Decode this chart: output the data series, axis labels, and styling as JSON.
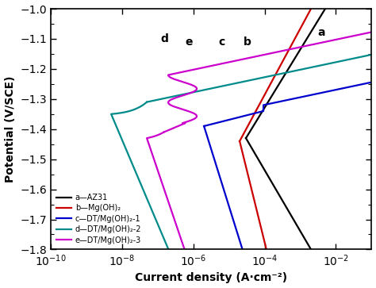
{
  "xlabel": "Current density (A·cm⁻²)",
  "ylabel": "Potential (V/SCE)",
  "ylim": [
    -1.8,
    -1.0
  ],
  "curves": {
    "a": {
      "label": "AZ31",
      "color": "#000000",
      "lw": 1.6
    },
    "b": {
      "label": "Mg(OH)₂",
      "color": "#cc0000",
      "lw": 1.6
    },
    "c": {
      "label": "DT/Mg(OH)₂-1",
      "color": "#0000cc",
      "lw": 1.6
    },
    "d": {
      "label": "DT/Mg(OH)₂-2",
      "color": "#008b8b",
      "lw": 1.6
    },
    "e": {
      "label": "DT/Mg(OH)₂-3",
      "color": "#cc00cc",
      "lw": 1.6
    }
  },
  "legend_keys": [
    "a",
    "b",
    "c",
    "d",
    "e"
  ],
  "legend_symbols": [
    "a—AZ31",
    "b—Mg(OH)₂",
    "c—DT/Mg(OH)₂-1",
    "d—DT/Mg(OH)₂-2",
    "e—DT/Mg(OH)₂-3"
  ]
}
